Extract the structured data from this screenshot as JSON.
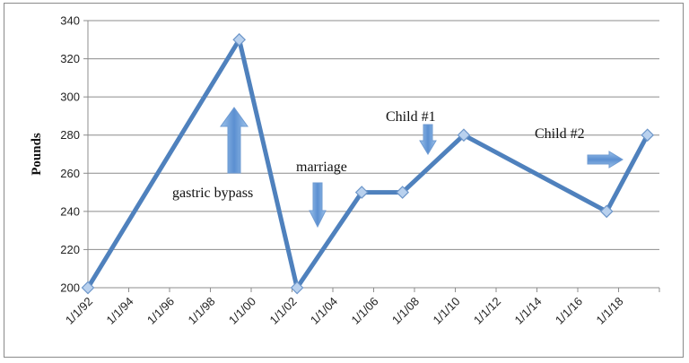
{
  "chart_data": {
    "type": "line",
    "title": "",
    "xlabel": "",
    "ylabel": "Pounds",
    "ylim": [
      200,
      340
    ],
    "yticks": [
      200,
      220,
      240,
      260,
      280,
      300,
      320,
      340
    ],
    "xtick_labels": [
      "1/1/92",
      "1/1/94",
      "1/1/96",
      "1/1/98",
      "1/1/00",
      "1/1/02",
      "1/1/04",
      "1/1/06",
      "1/1/08",
      "1/1/10",
      "1/1/12",
      "1/1/14",
      "1/1/16",
      "1/1/18"
    ],
    "grid": "horizontal",
    "legend": "none",
    "series": [
      {
        "color": "#4f81bd",
        "points": [
          {
            "x": "1992-01-01",
            "y": 200
          },
          {
            "x": "1999-06-01",
            "y": 330
          },
          {
            "x": "2002-04-01",
            "y": 200
          },
          {
            "x": "2005-06-01",
            "y": 250
          },
          {
            "x": "2007-06-01",
            "y": 250
          },
          {
            "x": "2010-06-01",
            "y": 280
          },
          {
            "x": "2017-06-01",
            "y": 240
          },
          {
            "x": "2019-06-01",
            "y": 280
          }
        ]
      }
    ],
    "annotations": [
      {
        "text": "gastric bypass",
        "arrow": "up"
      },
      {
        "text": "marriage",
        "arrow": "down"
      },
      {
        "text": "Child #1",
        "arrow": "down"
      },
      {
        "text": "Child #2",
        "arrow": "right"
      }
    ]
  }
}
